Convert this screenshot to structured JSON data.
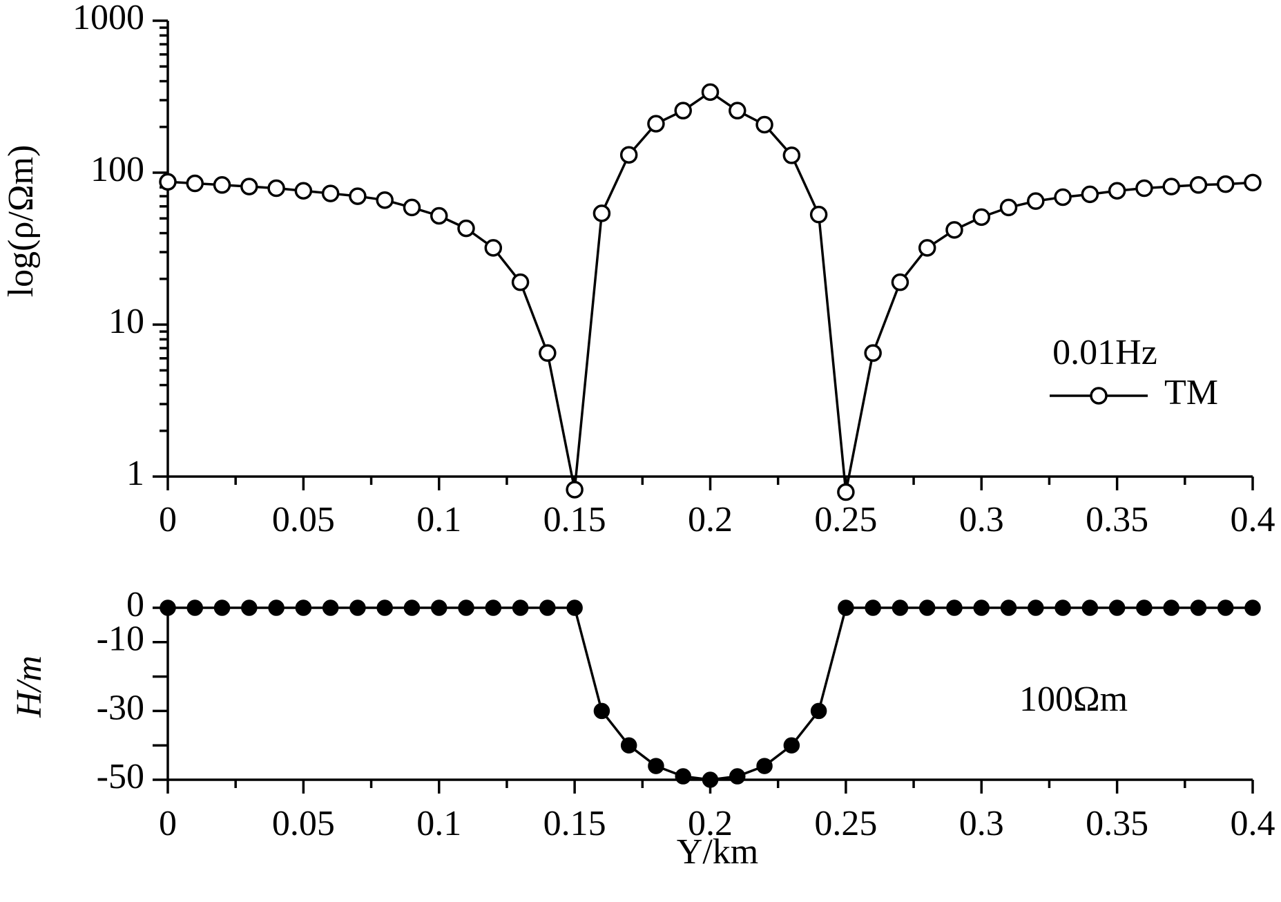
{
  "chart_data": [
    {
      "type": "line",
      "yscale": "log",
      "ylabel": "log(ρ/Ωm)",
      "annotations": [
        "0.01Hz"
      ],
      "x": [
        0,
        0.01,
        0.02,
        0.03,
        0.04,
        0.05,
        0.06,
        0.07,
        0.08,
        0.09,
        0.1,
        0.11,
        0.12,
        0.13,
        0.14,
        0.15,
        0.16,
        0.17,
        0.18,
        0.19,
        0.2,
        0.21,
        0.22,
        0.23,
        0.24,
        0.25,
        0.26,
        0.27,
        0.28,
        0.29,
        0.3,
        0.31,
        0.32,
        0.33,
        0.34,
        0.35,
        0.36,
        0.37,
        0.38,
        0.39,
        0.4
      ],
      "series": [
        {
          "name": "TM",
          "color": "#000000",
          "marker": "open-circle",
          "values": [
            87,
            85,
            83,
            81,
            79,
            76,
            73,
            70,
            66,
            59,
            52,
            43,
            32,
            19,
            6.5,
            0.82,
            54,
            131,
            210,
            256,
            339,
            256,
            207,
            130,
            53,
            0.79,
            6.5,
            19,
            32,
            42,
            51,
            59,
            65,
            69,
            72,
            76,
            79,
            81,
            83,
            84,
            86
          ]
        }
      ],
      "xlim": [
        0,
        0.4
      ],
      "xticks": [
        0,
        0.05,
        0.1,
        0.15,
        0.2,
        0.25,
        0.3,
        0.35,
        0.4
      ],
      "ylim": [
        1,
        1000
      ],
      "yticks": [
        1,
        10,
        100,
        1000
      ],
      "legend": true
    },
    {
      "type": "line",
      "ylabel": "H/m",
      "xlabel": "Y/km",
      "annotations": [
        "100Ωm"
      ],
      "x": [
        0,
        0.01,
        0.02,
        0.03,
        0.04,
        0.05,
        0.06,
        0.07,
        0.08,
        0.09,
        0.1,
        0.11,
        0.12,
        0.13,
        0.14,
        0.15,
        0.16,
        0.17,
        0.18,
        0.19,
        0.2,
        0.21,
        0.22,
        0.23,
        0.24,
        0.25,
        0.26,
        0.27,
        0.28,
        0.29,
        0.3,
        0.31,
        0.32,
        0.33,
        0.34,
        0.35,
        0.36,
        0.37,
        0.38,
        0.39,
        0.4
      ],
      "series": [
        {
          "color": "#000000",
          "marker": "filled-circle",
          "values": [
            0,
            0,
            0,
            0,
            0,
            0,
            0,
            0,
            0,
            0,
            0,
            0,
            0,
            0,
            0,
            0,
            -30,
            -40,
            -46,
            -49,
            -50,
            -49,
            -46,
            -40,
            -30,
            0,
            0,
            0,
            0,
            0,
            0,
            0,
            0,
            0,
            0,
            0,
            0,
            0,
            0,
            0,
            0
          ]
        }
      ],
      "xlim": [
        0,
        0.4
      ],
      "xticks": [
        0,
        0.05,
        0.1,
        0.15,
        0.2,
        0.25,
        0.3,
        0.35,
        0.4
      ],
      "ylim": [
        -50,
        0
      ],
      "yticks": [
        0,
        -10,
        -30,
        -50
      ],
      "yminorticks": [
        -20,
        -40
      ],
      "legend": false
    }
  ]
}
